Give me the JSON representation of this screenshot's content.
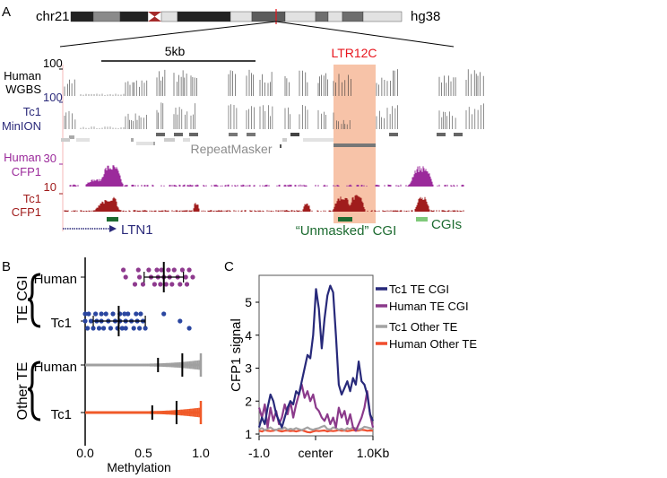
{
  "panels": {
    "a": "A",
    "b": "B",
    "c": "C"
  },
  "ideogram": {
    "chromosome": "chr21",
    "assembly": "hg38"
  },
  "browser": {
    "scale_label": "5kb",
    "highlight_label": "LTR12C",
    "tracks": [
      {
        "line1": "Human",
        "line2": "WGBS",
        "max": "100",
        "color": "#000000"
      },
      {
        "line1": "Tc1",
        "line2": "MinION",
        "max": "100",
        "color": "#2b2a7a"
      },
      {
        "line1": "Human",
        "line2": "CFP1",
        "max": "30",
        "color": "#9b2a9b"
      },
      {
        "line1": "Tc1",
        "line2": "CFP1",
        "max": "10",
        "color": "#a01c1c"
      }
    ],
    "repeatmasker_label": "RepeatMasker",
    "gene_label": "LTN1",
    "unmasked_cgi_label": "“Unmasked” CGI",
    "cgis_label": "CGIs",
    "colors": {
      "highlight": "#f7c3a8",
      "cgi": "#1c6b30",
      "cgi_light": "#7fc97a",
      "gene": "#2b2a7a",
      "label_red": "#e8141c"
    }
  },
  "chart_data": [
    {
      "type": "scatter",
      "panel": "B",
      "xlabel": "Methylation",
      "xlim": [
        0,
        1
      ],
      "xticks": [
        "0.0",
        "0.5",
        "1.0"
      ],
      "groups": [
        {
          "name": "TE CGI",
          "rows": [
            "Human",
            "Tc1"
          ]
        },
        {
          "name": "Other TE",
          "rows": [
            "Human",
            "Tc1"
          ]
        }
      ],
      "series": [
        {
          "group": "TE CGI",
          "row": "Human",
          "color": "#8e3a8e",
          "median": 0.68,
          "whisker": [
            0.51,
            0.85
          ],
          "values": [
            0.33,
            0.35,
            0.43,
            0.46,
            0.47,
            0.5,
            0.55,
            0.57,
            0.6,
            0.62,
            0.63,
            0.65,
            0.66,
            0.68,
            0.7,
            0.72,
            0.73,
            0.75,
            0.77,
            0.8,
            0.82,
            0.84,
            0.87,
            0.88,
            0.9,
            0.93
          ]
        },
        {
          "group": "TE CGI",
          "row": "Tc1",
          "color": "#2a46a0",
          "median": 0.29,
          "whisker": [
            0.07,
            0.52
          ],
          "values": [
            0.0,
            0.0,
            0.02,
            0.03,
            0.05,
            0.07,
            0.09,
            0.1,
            0.12,
            0.14,
            0.14,
            0.16,
            0.18,
            0.2,
            0.22,
            0.24,
            0.26,
            0.28,
            0.3,
            0.3,
            0.32,
            0.34,
            0.35,
            0.35,
            0.37,
            0.4,
            0.42,
            0.44,
            0.45,
            0.47,
            0.48,
            0.5,
            0.52,
            0.68,
            0.82,
            0.9
          ]
        },
        {
          "group": "Other TE",
          "row": "Human",
          "color": "#a0a0a0",
          "median": 0.84,
          "quartile": 0.63
        },
        {
          "group": "Other TE",
          "row": "Tc1",
          "color": "#f05a28",
          "median": 0.79,
          "quartile": 0.58
        }
      ]
    },
    {
      "type": "line",
      "panel": "C",
      "ylabel": "CFP1 signal",
      "ylim": [
        1,
        5.6
      ],
      "yticks": [
        "1",
        "2",
        "3",
        "4",
        "5"
      ],
      "xticks": [
        "-1.0",
        "center",
        "1.0Kb"
      ],
      "xlim": [
        -1,
        1
      ],
      "legend_position": "right",
      "series": [
        {
          "name": "Tc1 TE CGI",
          "color": "#27297a",
          "values": [
            1.2,
            1.5,
            1.3,
            1.8,
            2.2,
            2.0,
            1.6,
            1.4,
            1.2,
            1.5,
            1.8,
            2.0,
            1.9,
            2.3,
            2.2,
            2.6,
            3.0,
            3.4,
            3.3,
            4.0,
            5.4,
            4.8,
            3.6,
            4.5,
            5.2,
            5.5,
            5.3,
            4.0,
            2.5,
            2.2,
            2.4,
            2.6,
            2.3,
            2.7,
            2.5,
            3.2,
            2.6,
            2.5,
            2.2,
            1.6,
            1.4
          ]
        },
        {
          "name": "Human TE CGI",
          "color": "#8b3a8b",
          "values": [
            1.8,
            1.5,
            1.9,
            1.2,
            1.8,
            1.4,
            1.7,
            1.3,
            1.5,
            1.9,
            1.6,
            2.0,
            1.5,
            1.9,
            2.2,
            2.5,
            2.1,
            2.3,
            2.0,
            2.2,
            1.8,
            1.7,
            1.5,
            1.4,
            1.6,
            1.3,
            1.5,
            1.2,
            1.8,
            1.5,
            1.7,
            1.3,
            1.6,
            1.2,
            1.1,
            1.3,
            1.5,
            1.8,
            2.3,
            1.6,
            1.2
          ]
        },
        {
          "name": "Tc1 Other TE",
          "color": "#a3a3a3",
          "values": [
            1.15,
            1.18,
            1.12,
            1.16,
            1.2,
            1.14,
            1.12,
            1.17,
            1.15,
            1.2,
            1.13,
            1.16,
            1.14,
            1.18,
            1.15,
            1.12,
            1.16,
            1.2,
            1.15,
            1.13,
            1.16,
            1.18,
            1.22,
            1.25,
            1.15,
            1.14,
            1.2,
            1.18,
            1.13,
            1.16,
            1.12,
            1.18,
            1.15,
            1.2,
            1.17,
            1.14,
            1.16,
            1.22,
            1.2,
            1.18,
            1.15
          ]
        },
        {
          "name": "Human Other TE",
          "color": "#f04e2e",
          "values": [
            1.1,
            1.08,
            1.12,
            1.1,
            1.09,
            1.1,
            1.13,
            1.1,
            1.08,
            1.1,
            1.11,
            1.09,
            1.1,
            1.08,
            1.1,
            1.12,
            1.09,
            1.06,
            1.05,
            1.08,
            1.1,
            1.09,
            1.1,
            1.11,
            1.08,
            1.1,
            1.09,
            1.1,
            1.12,
            1.1,
            1.11,
            1.09,
            1.1,
            1.12,
            1.1,
            1.11,
            1.13,
            1.12,
            1.1,
            1.11,
            1.1
          ]
        }
      ]
    }
  ]
}
